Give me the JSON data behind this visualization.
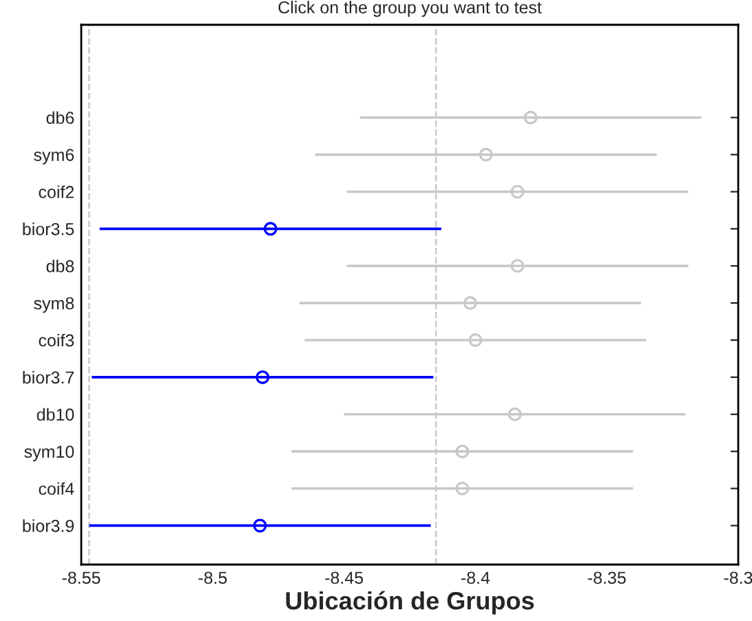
{
  "chart_data": {
    "type": "scatter",
    "orientation": "horizontal",
    "title": "Click on the group you want to test",
    "xlabel": "Ubicación de Grupos",
    "categories": [
      "db6",
      "sym6",
      "coif2",
      "bior3.5",
      "db8",
      "sym8",
      "coif3",
      "bior3.7",
      "db10",
      "sym10",
      "coif4",
      "bior3.9"
    ],
    "values": [
      -8.379,
      -8.396,
      -8.384,
      -8.478,
      -8.384,
      -8.402,
      -8.4,
      -8.481,
      -8.385,
      -8.405,
      -8.405,
      -8.482
    ],
    "errors": [
      0.065,
      0.065,
      0.065,
      0.065,
      0.065,
      0.065,
      0.065,
      0.065,
      0.065,
      0.065,
      0.065,
      0.065
    ],
    "colors": [
      "#c8c8c8",
      "#c8c8c8",
      "#c8c8c8",
      "#0000ff",
      "#c8c8c8",
      "#c8c8c8",
      "#c8c8c8",
      "#0000ff",
      "#c8c8c8",
      "#c8c8c8",
      "#c8c8c8",
      "#0000ff"
    ],
    "marker": "circle",
    "xlim": [
      -8.55,
      -8.3
    ],
    "xticks": [
      -8.55,
      -8.5,
      -8.45,
      -8.4,
      -8.35,
      -8.3
    ],
    "ref_lines": [
      {
        "axis": "x",
        "value": -8.547,
        "color": "#c8c8c8",
        "line_style": "dashed"
      },
      {
        "axis": "x",
        "value": -8.415,
        "color": "#c8c8c8",
        "line_style": "dashed"
      }
    ],
    "grid": false
  }
}
